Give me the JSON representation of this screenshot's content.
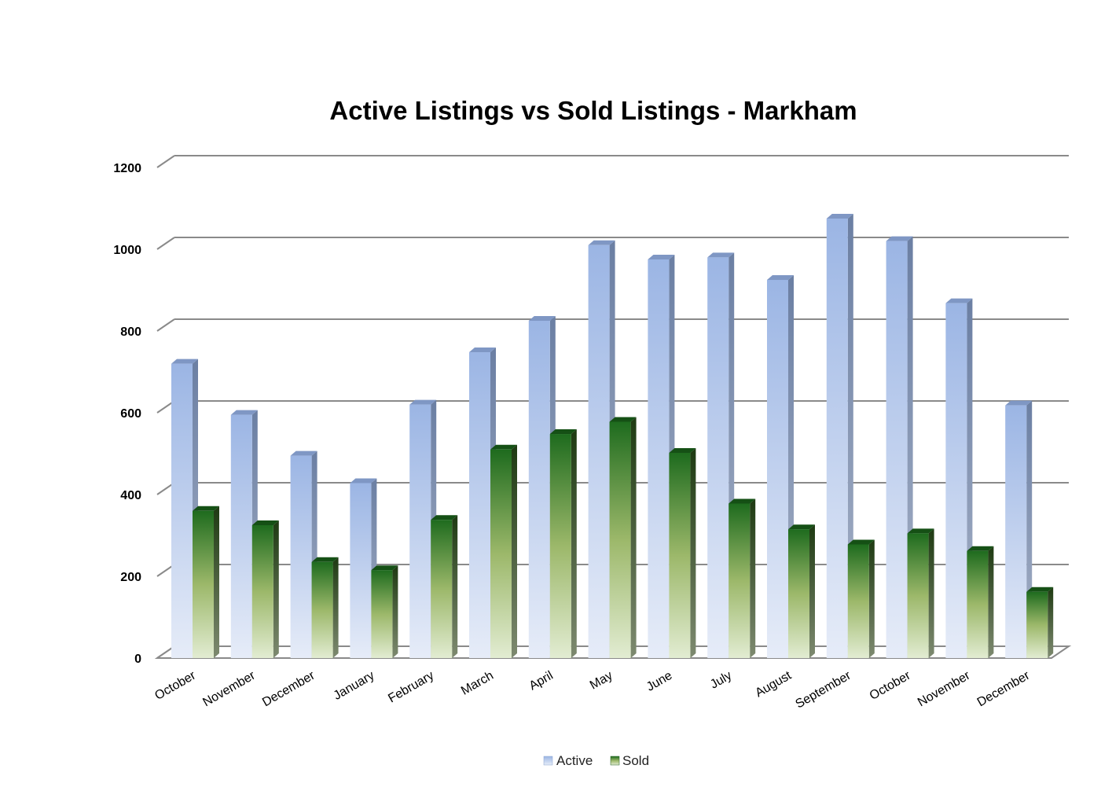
{
  "chart_data": {
    "type": "bar",
    "title": "Active Listings vs Sold Listings - Markham",
    "xlabel": "",
    "ylabel": "",
    "ylim": [
      0,
      1200
    ],
    "yticks": [
      "0",
      "200",
      "400",
      "600",
      "800",
      "1000",
      "1200"
    ],
    "categories": [
      "October",
      "November",
      "December",
      "January",
      "February",
      "March",
      "April",
      "May",
      "June",
      "July",
      "August",
      "September",
      "October",
      "November",
      "December"
    ],
    "series": [
      {
        "name": "Active",
        "values": [
          720,
          595,
          495,
          428,
          620,
          748,
          825,
          1010,
          975,
          980,
          925,
          1075,
          1020,
          868,
          618
        ]
      },
      {
        "name": "Sold",
        "values": [
          360,
          325,
          235,
          215,
          338,
          510,
          548,
          578,
          502,
          378,
          315,
          278,
          305,
          262,
          162
        ]
      }
    ],
    "legend": "bottom",
    "grid": true,
    "colors": {
      "active_top": "#9bb5e4",
      "active_bottom": "#e6ecf8",
      "active_side": "#6b7fa3",
      "sold_top": "#1e6b1e",
      "sold_mid": "#9cb86a",
      "sold_bottom": "#e2ecd2",
      "sold_side": "#2c4a1c",
      "grid": "#8a8a8a"
    }
  }
}
